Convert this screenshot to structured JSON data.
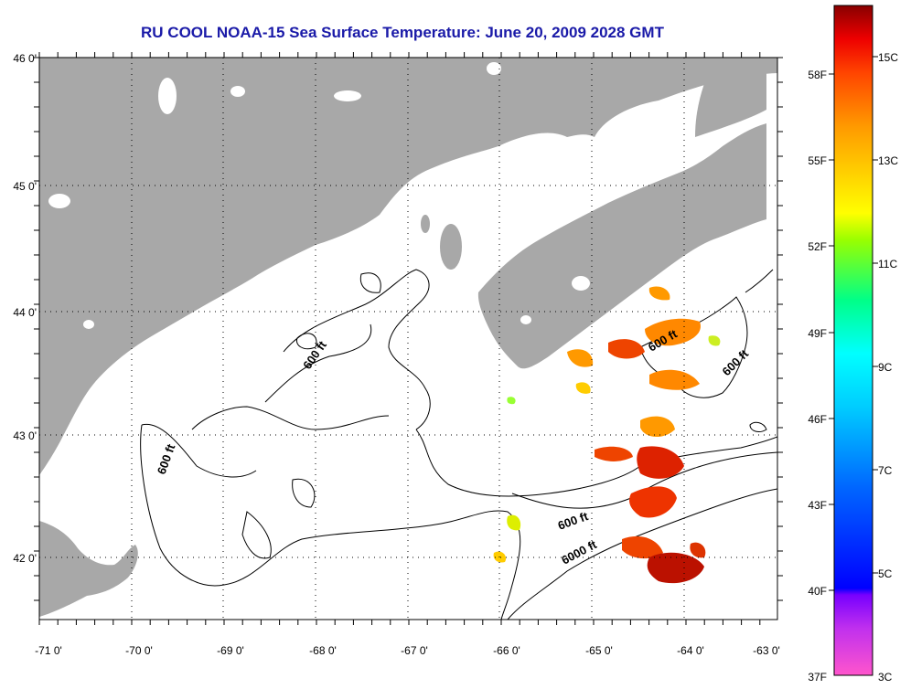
{
  "title": "RU COOL  NOAA-15  Sea Surface Temperature:  June 20, 2009 2028 GMT",
  "map": {
    "lon_labels": [
      "-71 0'",
      "-70 0'",
      "-69 0'",
      "-68 0'",
      "-67 0'",
      "-66 0'",
      "-65 0'",
      "-64 0'",
      "-63 0'"
    ],
    "lat_labels": [
      "46 0'",
      "45 0'",
      "44 0'",
      "43 0'",
      "42 0'"
    ],
    "contour_labels": {
      "c600_west": "600 ft",
      "c600_north": "600 ft",
      "c600_east": "600 ft",
      "c600_south": "600 ft",
      "c6000_south": "6000 ft"
    },
    "colors": {
      "land": "#a8a8a8",
      "water": "#ffffff",
      "contour": "#000000",
      "grid": "#000000"
    }
  },
  "colorbar": {
    "fahrenheit_labels": [
      "58F",
      "55F",
      "52F",
      "49F",
      "46F",
      "43F",
      "40F",
      "37F"
    ],
    "celsius_labels": [
      "15C",
      "13C",
      "11C",
      "9C",
      "7C",
      "5C",
      "3C"
    ],
    "colors": [
      "#ff55cc",
      "#8800ff",
      "#0000ff",
      "#0088ff",
      "#00ffff",
      "#00ff66",
      "#bbff00",
      "#ffff00",
      "#ff9900",
      "#ff3300",
      "#cc0000",
      "#800000"
    ]
  }
}
